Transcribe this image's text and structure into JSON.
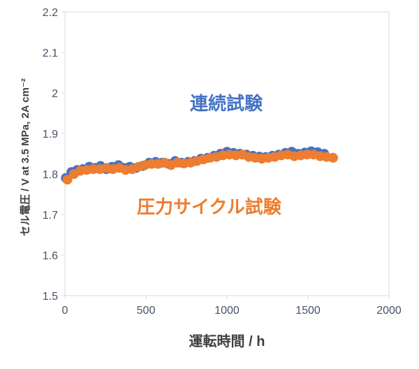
{
  "chart_data": {
    "type": "scatter",
    "title": "",
    "xlabel": "運転時間 / h",
    "ylabel": "セル電圧 / V at 3.5 MPa, 2A cm⁻²",
    "xlim": [
      0,
      2000
    ],
    "ylim": [
      1.5,
      2.2
    ],
    "x_ticks": [
      "0",
      "500",
      "1000",
      "1500",
      "2000"
    ],
    "y_ticks": [
      "1.5",
      "1.6",
      "1.7",
      "1.8",
      "1.9",
      "2",
      "2.1",
      "2.2"
    ],
    "grid": false,
    "legend_position": "none",
    "plot_border_color": "#d9d9d9",
    "tick_label_color": "#44546A",
    "axis_title_color": "#404040",
    "annotations": [
      {
        "text": "連続試験",
        "color": "#4472C4"
      },
      {
        "text": "圧力サイクル試験",
        "color": "#ED7D31"
      }
    ],
    "series": [
      {
        "name": "連続試験",
        "color": "#4472C4",
        "marker": "circle",
        "points": [
          [
            5,
            1.79
          ],
          [
            40,
            1.805
          ],
          [
            75,
            1.81
          ],
          [
            110,
            1.812
          ],
          [
            150,
            1.818
          ],
          [
            185,
            1.815
          ],
          [
            220,
            1.82
          ],
          [
            255,
            1.812
          ],
          [
            290,
            1.818
          ],
          [
            330,
            1.822
          ],
          [
            365,
            1.815
          ],
          [
            400,
            1.818
          ],
          [
            440,
            1.815
          ],
          [
            480,
            1.82
          ],
          [
            520,
            1.828
          ],
          [
            560,
            1.83
          ],
          [
            600,
            1.828
          ],
          [
            640,
            1.825
          ],
          [
            680,
            1.832
          ],
          [
            720,
            1.828
          ],
          [
            760,
            1.83
          ],
          [
            800,
            1.832
          ],
          [
            840,
            1.838
          ],
          [
            880,
            1.84
          ],
          [
            920,
            1.845
          ],
          [
            960,
            1.85
          ],
          [
            1000,
            1.855
          ],
          [
            1040,
            1.852
          ],
          [
            1080,
            1.85
          ],
          [
            1120,
            1.848
          ],
          [
            1160,
            1.845
          ],
          [
            1200,
            1.843
          ],
          [
            1240,
            1.842
          ],
          [
            1280,
            1.845
          ],
          [
            1320,
            1.848
          ],
          [
            1360,
            1.852
          ],
          [
            1400,
            1.855
          ],
          [
            1440,
            1.85
          ],
          [
            1480,
            1.853
          ],
          [
            1520,
            1.856
          ],
          [
            1560,
            1.854
          ],
          [
            1600,
            1.85
          ]
        ]
      },
      {
        "name": "圧力サイクル試験",
        "color": "#ED7D31",
        "marker": "circle",
        "points": [
          [
            15,
            1.786
          ],
          [
            55,
            1.8
          ],
          [
            95,
            1.808
          ],
          [
            135,
            1.81
          ],
          [
            175,
            1.812
          ],
          [
            215,
            1.812
          ],
          [
            255,
            1.815
          ],
          [
            295,
            1.812
          ],
          [
            335,
            1.815
          ],
          [
            375,
            1.81
          ],
          [
            415,
            1.812
          ],
          [
            455,
            1.818
          ],
          [
            495,
            1.822
          ],
          [
            535,
            1.825
          ],
          [
            575,
            1.825
          ],
          [
            615,
            1.828
          ],
          [
            655,
            1.822
          ],
          [
            695,
            1.828
          ],
          [
            735,
            1.826
          ],
          [
            775,
            1.828
          ],
          [
            815,
            1.832
          ],
          [
            855,
            1.836
          ],
          [
            895,
            1.84
          ],
          [
            935,
            1.842
          ],
          [
            975,
            1.846
          ],
          [
            1015,
            1.848
          ],
          [
            1055,
            1.846
          ],
          [
            1095,
            1.848
          ],
          [
            1135,
            1.842
          ],
          [
            1175,
            1.84
          ],
          [
            1215,
            1.838
          ],
          [
            1255,
            1.84
          ],
          [
            1295,
            1.842
          ],
          [
            1335,
            1.846
          ],
          [
            1375,
            1.848
          ],
          [
            1415,
            1.844
          ],
          [
            1455,
            1.846
          ],
          [
            1495,
            1.848
          ],
          [
            1535,
            1.848
          ],
          [
            1575,
            1.844
          ],
          [
            1615,
            1.842
          ],
          [
            1655,
            1.84
          ]
        ]
      }
    ]
  }
}
